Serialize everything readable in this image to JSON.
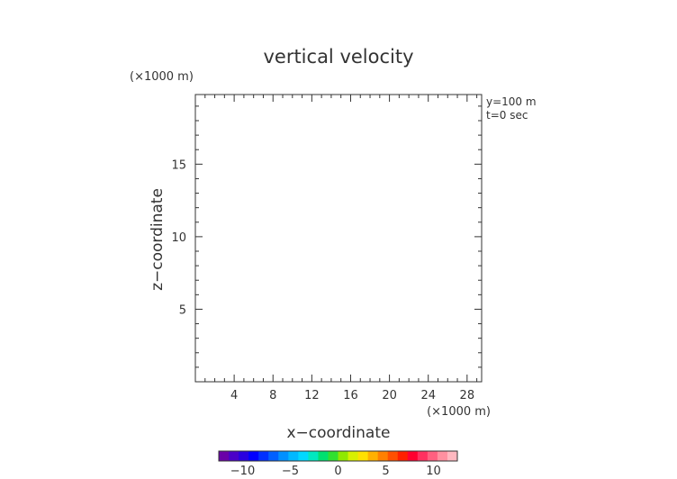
{
  "chart_data": {
    "type": "heatmap",
    "title": "vertical velocity",
    "xlabel": "x−coordinate",
    "ylabel": "z−coordinate",
    "x_unit": "(×1000 m)",
    "y_unit": "(×1000 m)",
    "annotations": [
      "y=100 m",
      "t=0 sec"
    ],
    "xlim": [
      0,
      29.5
    ],
    "ylim": [
      0,
      19.8
    ],
    "x_ticks": [
      4,
      8,
      12,
      16,
      20,
      24,
      28
    ],
    "x_tick_labels": [
      "4",
      "8",
      "12",
      "16",
      "20",
      "24",
      "28"
    ],
    "y_ticks": [
      5,
      10,
      15
    ],
    "y_tick_labels": [
      "5",
      "10",
      "15"
    ],
    "values": [],
    "colorbar": {
      "range": [
        -12.5,
        12.5
      ],
      "ticks": [
        -10,
        -5,
        0,
        5,
        10
      ],
      "tick_labels": [
        "−10",
        "−5",
        "0",
        "5",
        "10"
      ],
      "colors": [
        "#6a00a8",
        "#4b00c8",
        "#2a00e0",
        "#0000ff",
        "#0030ff",
        "#0060ff",
        "#0090ff",
        "#00b8ff",
        "#00d8ff",
        "#00e8c0",
        "#00e070",
        "#30e030",
        "#90e800",
        "#d8f000",
        "#ffe000",
        "#ffb000",
        "#ff8000",
        "#ff5000",
        "#ff2000",
        "#ff0030",
        "#ff3060",
        "#ff6080",
        "#ff90a0",
        "#ffb8c0"
      ]
    },
    "grid": false
  }
}
